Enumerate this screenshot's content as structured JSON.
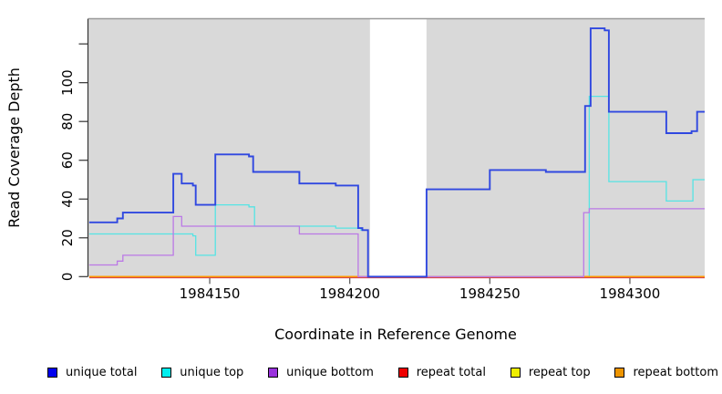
{
  "figure": {
    "background": "#ffffff",
    "plot_background": "#d9d9d9",
    "gap_fill": "#ffffff",
    "top_border_color": "#9a9a9a",
    "axis_color": "#333333"
  },
  "chart_data": {
    "type": "line",
    "subtype": "step-coverage",
    "title": "",
    "xlabel": "Coordinate in Reference Genome",
    "ylabel": "Read Coverage Depth",
    "x_range": [
      1984106.7,
      1984326.7
    ],
    "y_range": [
      0,
      133
    ],
    "x_ticks": [
      1984150,
      1984200,
      1984250,
      1984300
    ],
    "y_ticks": {
      "values": [
        0,
        20,
        40,
        60,
        80,
        100,
        120
      ],
      "labels": [
        "0",
        "20",
        "40",
        "60",
        "80",
        "100",
        ""
      ]
    },
    "gap_region": {
      "x_start": 1984207.2,
      "x_end": 1984227.4
    },
    "grid": false,
    "legend_position": "bottom",
    "series": [
      {
        "name": "unique total",
        "legend_color": "#0000ee",
        "line_color": "#3048e0",
        "line_width": 1.9,
        "steps": [
          [
            1984107,
            28
          ],
          [
            1984117,
            30
          ],
          [
            1984119,
            33
          ],
          [
            1984137,
            53
          ],
          [
            1984140,
            48
          ],
          [
            1984144,
            47
          ],
          [
            1984145,
            37
          ],
          [
            1984152,
            63
          ],
          [
            1984164,
            62
          ],
          [
            1984165.5,
            54
          ],
          [
            1984182,
            48
          ],
          [
            1984195,
            47
          ],
          [
            1984203,
            25
          ],
          [
            1984204.5,
            24
          ],
          [
            1984206.5,
            0
          ],
          [
            1984227.4,
            45
          ],
          [
            1984250,
            55
          ],
          [
            1984270,
            54
          ],
          [
            1984284,
            88
          ],
          [
            1984286,
            128
          ],
          [
            1984291,
            127
          ],
          [
            1984292.5,
            85
          ],
          [
            1984313,
            74
          ],
          [
            1984322,
            75
          ],
          [
            1984324,
            85
          ]
        ]
      },
      {
        "name": "unique top",
        "legend_color": "#00eeee",
        "line_color": "#55e4e4",
        "line_width": 1.3,
        "steps": [
          [
            1984107,
            22
          ],
          [
            1984144,
            21
          ],
          [
            1984145,
            11
          ],
          [
            1984152,
            37
          ],
          [
            1984164,
            36
          ],
          [
            1984166,
            26
          ],
          [
            1984195,
            25
          ],
          [
            1984204,
            24
          ],
          [
            1984206.5,
            0
          ],
          [
            1984285.5,
            93
          ],
          [
            1984292.5,
            49
          ],
          [
            1984313,
            39
          ],
          [
            1984322.5,
            50
          ]
        ]
      },
      {
        "name": "unique bottom",
        "legend_color": "#9a32dd",
        "line_color": "#bb79e6",
        "line_width": 1.3,
        "steps": [
          [
            1984107,
            6
          ],
          [
            1984117,
            8
          ],
          [
            1984119,
            11
          ],
          [
            1984137,
            31
          ],
          [
            1984140,
            26
          ],
          [
            1984182,
            22
          ],
          [
            1984203,
            0
          ],
          [
            1984283.5,
            33
          ],
          [
            1984285.5,
            35
          ]
        ]
      },
      {
        "name": "repeat total",
        "legend_color": "#ee0000",
        "line_color": "#d03c50",
        "line_width": 1.2,
        "steps": [
          [
            1984107,
            0
          ]
        ]
      },
      {
        "name": "repeat top",
        "legend_color": "#eeee00",
        "line_color": "#eeee00",
        "line_width": 1.2,
        "steps": [
          [
            1984107,
            0
          ]
        ]
      },
      {
        "name": "repeat bottom",
        "legend_color": "#ee9500",
        "line_color": "#ff9800",
        "line_width": 1.6,
        "steps": [
          [
            1984107,
            0
          ]
        ]
      }
    ]
  }
}
